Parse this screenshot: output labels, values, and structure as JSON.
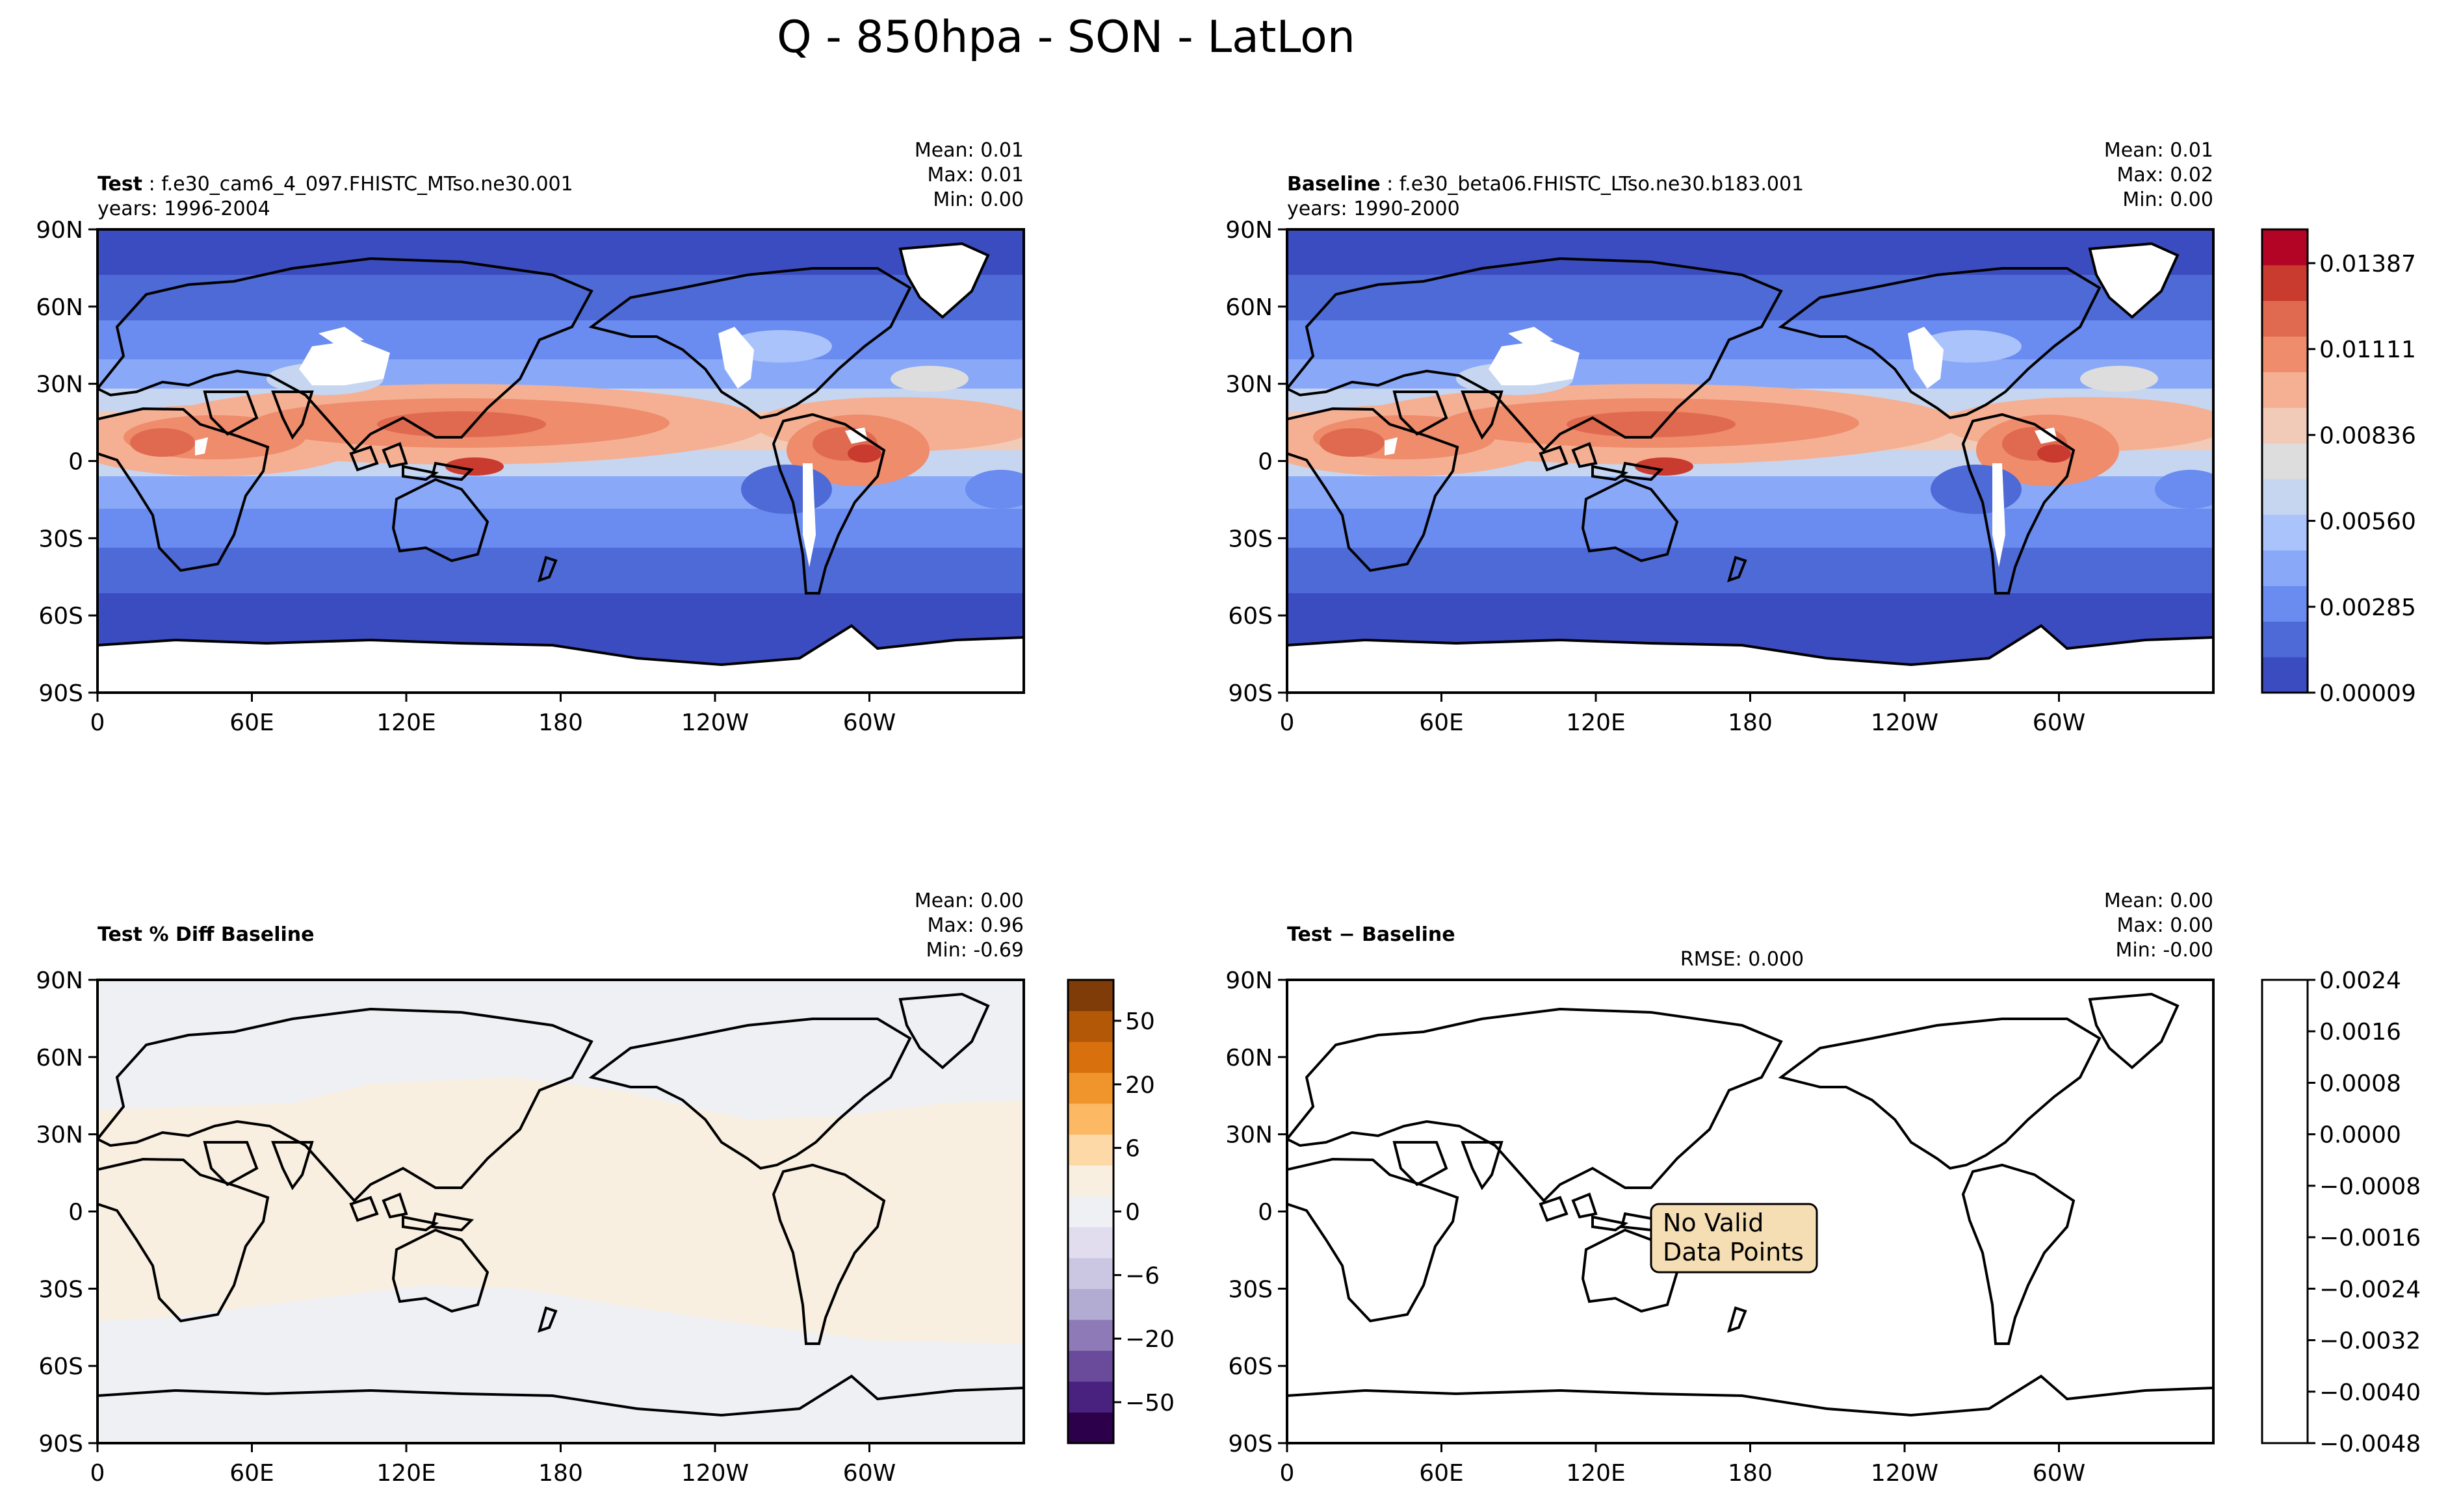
{
  "figure": {
    "title": "Q - 850hpa - SON - LatLon",
    "lat_ticks": [
      "90N",
      "60N",
      "30N",
      "0",
      "30S",
      "60S",
      "90S"
    ],
    "lon_ticks": [
      "0",
      "60E",
      "120E",
      "180",
      "120W",
      "60W"
    ]
  },
  "colors": {
    "coolwarm": [
      "#3b4cc0",
      "#4e6ad6",
      "#6a8bef",
      "#89a9f8",
      "#aac3fb",
      "#c6d6f1",
      "#dddddd",
      "#f1cbb7",
      "#f5b093",
      "#ee8c6c",
      "#e06a50",
      "#c93b2f",
      "#b40426"
    ],
    "puor": [
      "#2d004b",
      "#49217f",
      "#6a4b9b",
      "#8e7ab6",
      "#b2abd2",
      "#cbc7e3",
      "#e1ddef",
      "#eff0f4",
      "#f8efe0",
      "#fcd9a6",
      "#fdb863",
      "#f0952c",
      "#d8700d",
      "#b35806",
      "#7f3b08"
    ],
    "land": "#ffffff",
    "coast": "#000000"
  },
  "panels": [
    {
      "id": "test",
      "title_bold": "Test",
      "title_rest": ": f.e30_cam6_4_097.FHISTC_MTso.ne30.001",
      "years": "years: 1996-2004",
      "stats": [
        "Mean:  0.01",
        "Max:  0.01",
        "Min:  0.00"
      ],
      "field": "q"
    },
    {
      "id": "baseline",
      "title_bold": "Baseline",
      "title_rest": ": f.e30_beta06.FHISTC_LTso.ne30.b183.001",
      "years": "years: 1990-2000",
      "stats": [
        "Mean:  0.01",
        "Max:  0.02",
        "Min:  0.00"
      ],
      "field": "q"
    },
    {
      "id": "pctdiff",
      "title_bold": "Test % Diff Baseline",
      "stats": [
        "Mean:  0.00",
        "Max:  0.96",
        "Min: -0.69"
      ],
      "field": "pct"
    },
    {
      "id": "diff",
      "title_bold": "Test − Baseline",
      "rmse": "RMSE: 0.000",
      "stats": [
        "Mean:  0.00",
        "Max:  0.00",
        "Min: -0.00"
      ],
      "field": "none",
      "message": [
        "No Valid",
        "Data Points"
      ]
    }
  ],
  "colorbars": {
    "main": {
      "labels": [
        "0.01387",
        "0.01111",
        "0.00836",
        "0.00560",
        "0.00285",
        "0.00009"
      ]
    },
    "pct": {
      "labels": [
        "50",
        "20",
        "6",
        "0",
        "−6",
        "−20",
        "−50"
      ]
    },
    "diff": {
      "labels": [
        "0.0024",
        "0.0016",
        "0.0008",
        "0.0000",
        "−0.0008",
        "−0.0016",
        "−0.0024",
        "−0.0032",
        "−0.0040",
        "−0.0048"
      ]
    }
  },
  "chart_data": [
    {
      "type": "heatmap",
      "title": "Test : f.e30_cam6_4_097.FHISTC_MTso.ne30.001",
      "variable": "Q (specific humidity) at 850 hPa, SON",
      "x_range": [
        0,
        360
      ],
      "y_range": [
        -90,
        90
      ],
      "color_levels": [
        9e-05,
        0.00285,
        0.0056,
        0.00836,
        0.01111,
        0.01387
      ],
      "stats": {
        "mean": 0.01,
        "max": 0.01,
        "min": 0.0
      }
    },
    {
      "type": "heatmap",
      "title": "Baseline : f.e30_beta06.FHISTC_LTso.ne30.b183.001",
      "variable": "Q (specific humidity) at 850 hPa, SON",
      "x_range": [
        0,
        360
      ],
      "y_range": [
        -90,
        90
      ],
      "color_levels": [
        9e-05,
        0.00285,
        0.0056,
        0.00836,
        0.01111,
        0.01387
      ],
      "stats": {
        "mean": 0.01,
        "max": 0.02,
        "min": 0.0
      }
    },
    {
      "type": "heatmap",
      "title": "Test % Diff Baseline",
      "x_range": [
        0,
        360
      ],
      "y_range": [
        -90,
        90
      ],
      "color_levels": [
        -50,
        -20,
        -6,
        0,
        6,
        20,
        50
      ],
      "stats": {
        "mean": 0.0,
        "max": 0.96,
        "min": -0.69
      }
    },
    {
      "type": "heatmap",
      "title": "Test − Baseline",
      "x_range": [
        0,
        360
      ],
      "y_range": [
        -90,
        90
      ],
      "color_levels": [
        -0.0048,
        -0.004,
        -0.0032,
        -0.0024,
        -0.0016,
        -0.0008,
        0.0,
        0.0008,
        0.0016,
        0.0024
      ],
      "stats": {
        "mean": 0.0,
        "max": 0.0,
        "min": -0.0,
        "rmse": 0.0
      },
      "note": "No Valid Data Points"
    }
  ]
}
